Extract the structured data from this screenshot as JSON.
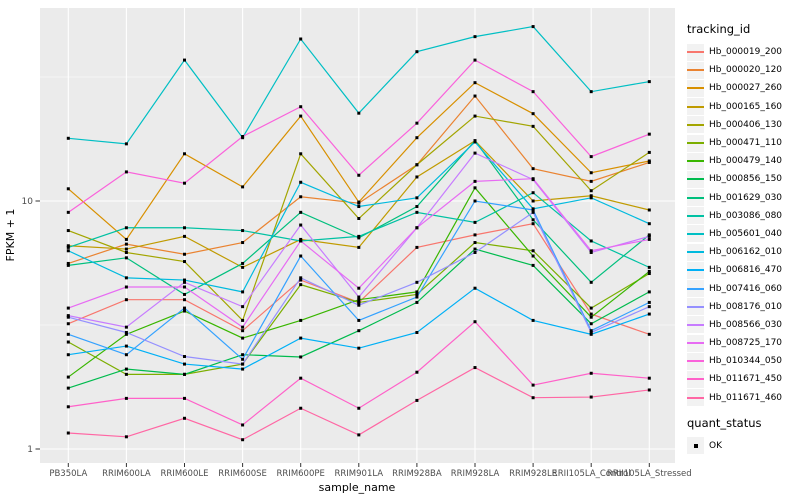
{
  "figure": {
    "background": "#FFFFFF",
    "panel_background": "#EBEBEB",
    "grid_color": "#FFFFFF",
    "tick_color": "#333333",
    "tick_label_color": "#4D4D4D",
    "axis_title_color": "#000000"
  },
  "chart_data": {
    "type": "line",
    "title": "",
    "xlabel": "sample_name",
    "ylabel": "FPKM + 1",
    "y_scale": "log10",
    "y_major_ticks": [
      1,
      10
    ],
    "y_minor_ticks": [
      3.1623,
      31.623
    ],
    "ylim": [
      0.88,
      59
    ],
    "grid": true,
    "legend_position": "right",
    "point_shape": "filled-square",
    "point_color": "#000000",
    "categories": [
      "PB350LA",
      "RRIM600LA",
      "RRIM600LE",
      "RRIM600SE",
      "RRIM600PE",
      "RRIM901LA",
      "RRIM928BA",
      "RRIM928LA",
      "RRIM928LE",
      "RRII105LA_Control",
      "RRII105LA_Stressed"
    ],
    "series": [
      {
        "name": "Hb_000019_200",
        "color": "#F8766D",
        "values": [
          3.2,
          4.0,
          4.0,
          3.0,
          4.8,
          3.9,
          6.5,
          7.3,
          8.1,
          3.5,
          2.9
        ]
      },
      {
        "name": "Hb_000020_120",
        "color": "#EA8331",
        "values": [
          5.6,
          6.7,
          6.1,
          6.8,
          10.4,
          9.8,
          14.0,
          26.5,
          13.5,
          12.0,
          14.3
        ]
      },
      {
        "name": "Hb_000027_260",
        "color": "#D89000",
        "values": [
          11.2,
          7.0,
          15.5,
          11.4,
          22.0,
          9.9,
          18.0,
          30.0,
          22.5,
          13.0,
          14.5
        ]
      },
      {
        "name": "Hb_000165_160",
        "color": "#C09B00",
        "values": [
          6.6,
          6.4,
          7.2,
          5.4,
          7.0,
          6.5,
          12.5,
          17.5,
          10.0,
          10.5,
          9.2
        ]
      },
      {
        "name": "Hb_000406_130",
        "color": "#A3A500",
        "values": [
          7.6,
          6.2,
          5.7,
          3.3,
          15.5,
          8.5,
          14.0,
          22.0,
          20.0,
          11.0,
          15.7
        ]
      },
      {
        "name": "Hb_000471_110",
        "color": "#7CAE00",
        "values": [
          2.7,
          2.0,
          2.0,
          2.2,
          4.6,
          3.9,
          4.2,
          6.8,
          6.3,
          3.7,
          5.1
        ]
      },
      {
        "name": "Hb_000479_140",
        "color": "#39B600",
        "values": [
          1.95,
          2.9,
          3.6,
          2.8,
          3.3,
          4.0,
          4.3,
          11.3,
          6.0,
          3.4,
          5.2
        ]
      },
      {
        "name": "Hb_000856_150",
        "color": "#00BB4E",
        "values": [
          1.76,
          2.1,
          2.0,
          2.4,
          2.35,
          3.0,
          3.9,
          6.4,
          5.5,
          3.2,
          4.3
        ]
      },
      {
        "name": "Hb_001629_030",
        "color": "#00BF7D",
        "values": [
          5.5,
          5.9,
          4.2,
          5.6,
          9.0,
          7.1,
          9.5,
          17.5,
          8.4,
          4.7,
          7.3
        ]
      },
      {
        "name": "Hb_003086_080",
        "color": "#00C1A3",
        "values": [
          6.5,
          7.8,
          7.8,
          7.6,
          6.9,
          7.2,
          9.0,
          8.2,
          10.8,
          6.9,
          5.4
        ]
      },
      {
        "name": "Hb_005601_040",
        "color": "#00BFC4",
        "values": [
          17.9,
          17.0,
          37.0,
          18.0,
          45.0,
          22.6,
          40.0,
          46.0,
          50.5,
          27.6,
          30.3
        ]
      },
      {
        "name": "Hb_006162_010",
        "color": "#00BADE",
        "values": [
          6.3,
          4.9,
          4.8,
          4.3,
          11.9,
          9.5,
          10.3,
          17.3,
          9.3,
          10.3,
          8.1
        ]
      },
      {
        "name": "Hb_006816_470",
        "color": "#00B0F6",
        "values": [
          2.4,
          2.6,
          2.2,
          2.1,
          2.8,
          2.55,
          2.95,
          4.45,
          3.3,
          2.9,
          3.5
        ]
      },
      {
        "name": "Hb_007416_060",
        "color": "#35A2FF",
        "values": [
          2.9,
          2.4,
          3.7,
          2.3,
          6.0,
          3.3,
          4.1,
          10.0,
          9.2,
          3.0,
          3.9
        ]
      },
      {
        "name": "Hb_008176_010",
        "color": "#9590FF",
        "values": [
          3.4,
          2.95,
          2.36,
          2.2,
          4.9,
          3.8,
          4.7,
          6.2,
          9.0,
          2.95,
          3.75
        ]
      },
      {
        "name": "Hb_008566_030",
        "color": "#C77CFF",
        "values": [
          3.45,
          3.1,
          4.7,
          3.75,
          8.0,
          4.1,
          7.8,
          15.6,
          12.2,
          6.2,
          7.2
        ]
      },
      {
        "name": "Hb_008725_170",
        "color": "#E76BF3",
        "values": [
          3.7,
          4.5,
          4.5,
          3.1,
          6.9,
          4.45,
          7.8,
          12.0,
          12.3,
          6.3,
          7.0
        ]
      },
      {
        "name": "Hb_010344_050",
        "color": "#FA62DB",
        "values": [
          9.0,
          13.1,
          11.8,
          18.2,
          24.0,
          12.7,
          20.6,
          37.0,
          27.6,
          15.1,
          18.6
        ]
      },
      {
        "name": "Hb_011671_450",
        "color": "#FF61C9",
        "values": [
          1.48,
          1.6,
          1.6,
          1.25,
          1.93,
          1.46,
          2.04,
          3.26,
          1.81,
          2.02,
          1.93
        ]
      },
      {
        "name": "Hb_011671_460",
        "color": "#FF67A4",
        "values": [
          1.16,
          1.12,
          1.33,
          1.09,
          1.46,
          1.14,
          1.57,
          2.13,
          1.61,
          1.62,
          1.73
        ]
      }
    ],
    "legend": {
      "series_title": "tracking_id",
      "status_title": "quant_status",
      "status_items": [
        {
          "label": "OK"
        }
      ]
    }
  }
}
